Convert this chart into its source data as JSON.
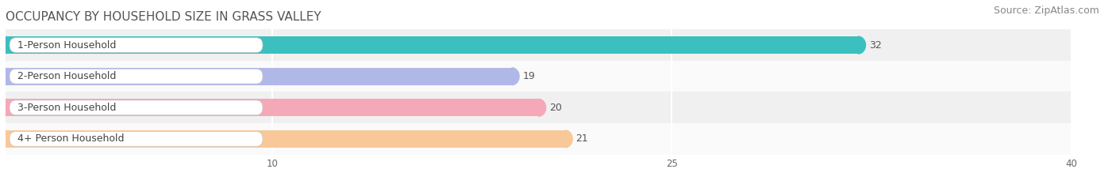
{
  "title": "OCCUPANCY BY HOUSEHOLD SIZE IN GRASS VALLEY",
  "source": "Source: ZipAtlas.com",
  "categories": [
    "1-Person Household",
    "2-Person Household",
    "3-Person Household",
    "4+ Person Household"
  ],
  "values": [
    32,
    19,
    20,
    21
  ],
  "bar_colors": [
    "#3bbfbf",
    "#b0b8e8",
    "#f4a8b8",
    "#f8c898"
  ],
  "row_colors": [
    "#f0f0f0",
    "#fafafa",
    "#f0f0f0",
    "#fafafa"
  ],
  "xlim": [
    0,
    40
  ],
  "xticks": [
    10,
    25,
    40
  ],
  "bar_height": 0.55,
  "background_color": "#ffffff",
  "title_fontsize": 11,
  "source_fontsize": 9,
  "label_fontsize": 9,
  "value_fontsize": 9
}
